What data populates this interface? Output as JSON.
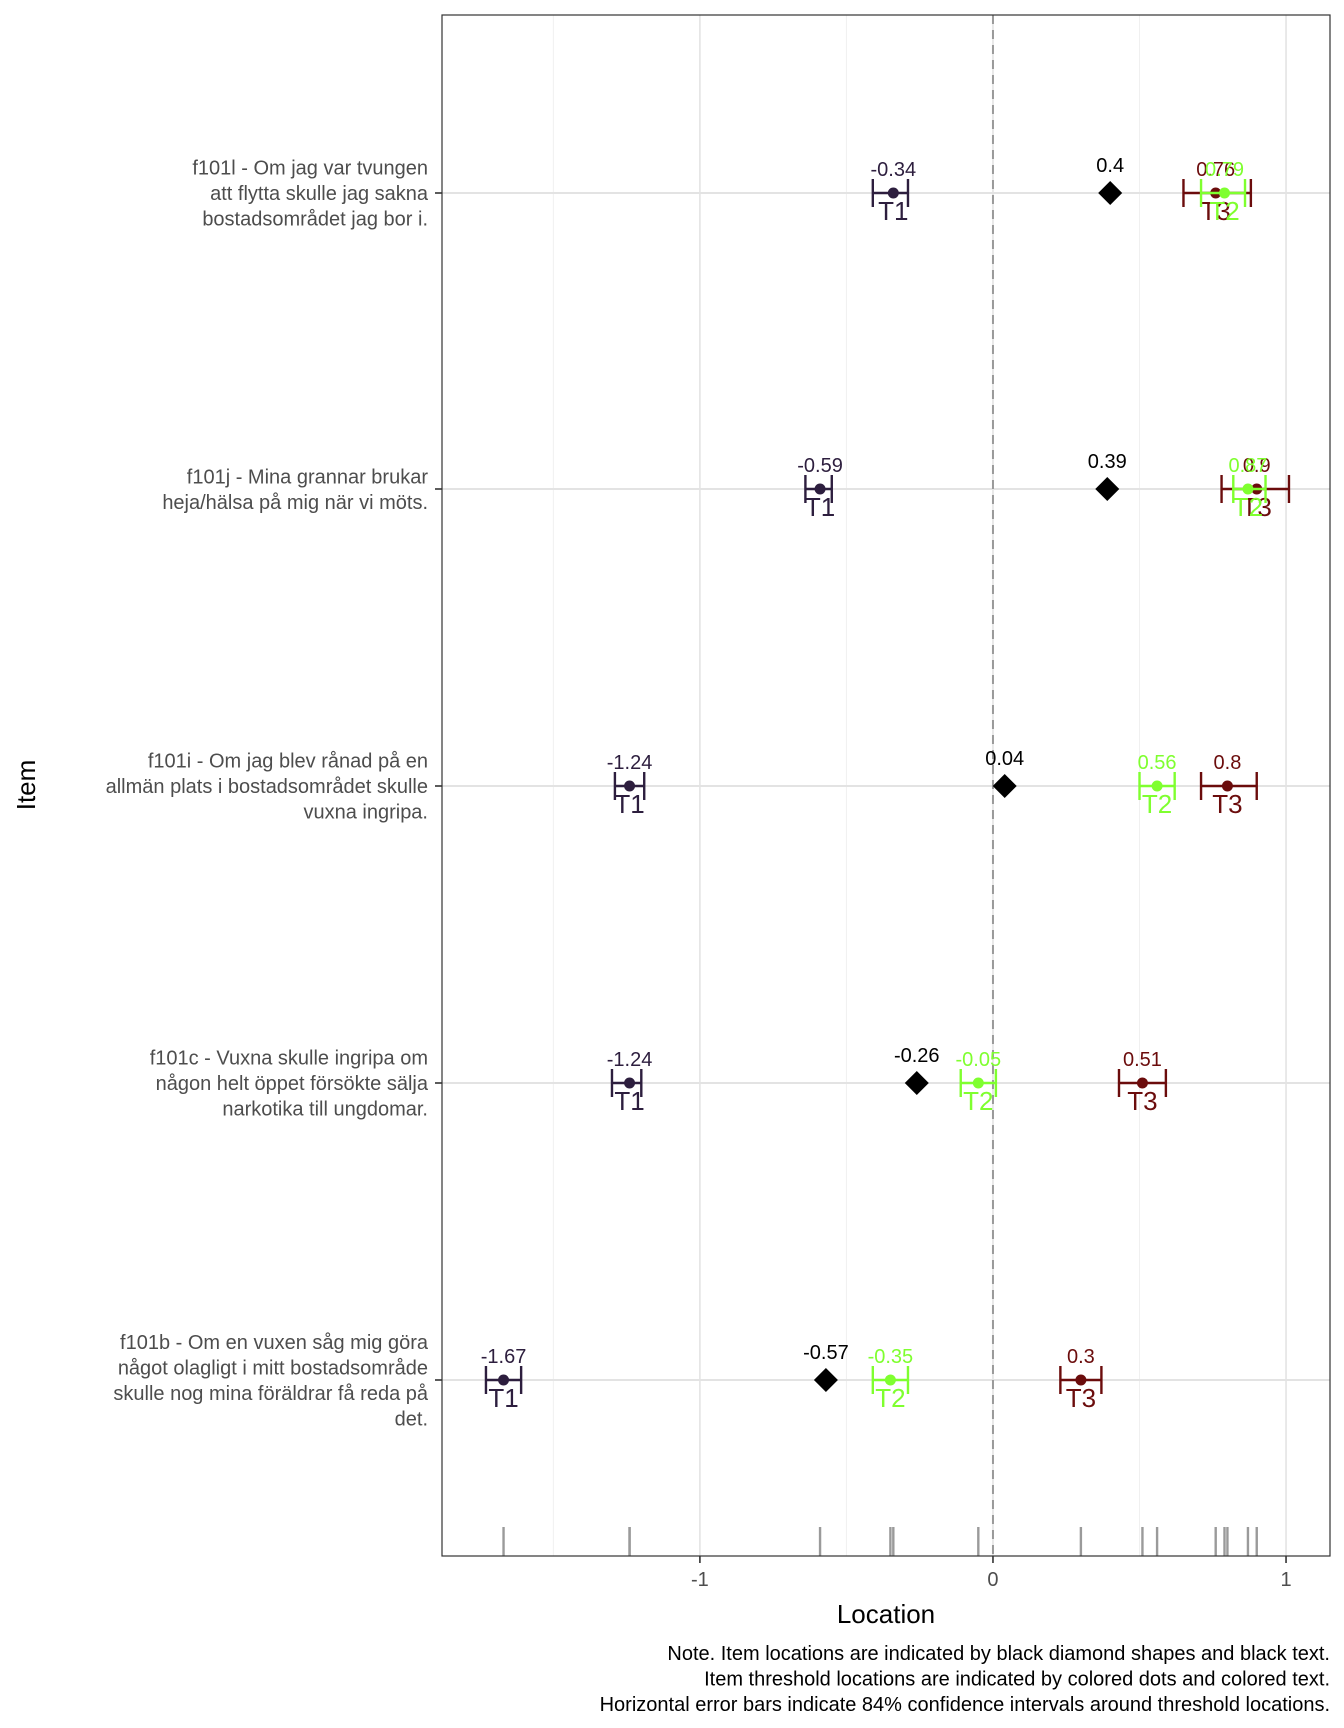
{
  "chart_data": {
    "type": "scatter",
    "xlabel": "Location",
    "ylabel": "Item",
    "xlim": [
      -1.88,
      1.15
    ],
    "x_ticks": [
      -1,
      0,
      1
    ],
    "x_tick_labels": [
      "-1",
      "0",
      "1"
    ],
    "grid": true,
    "reference_line_x": 0,
    "colors": {
      "T1": "#2d1e3e",
      "T2": "#7fff2f",
      "T3": "#6b0c0c",
      "item": "#000000",
      "rug": "#9a9a9a"
    },
    "items": [
      {
        "label_lines": [
          "f101l - Om jag var tvungen",
          "att flytta skulle jag sakna",
          "bostadsområdet jag bor i."
        ],
        "location": 0.4,
        "location_label": "0.4",
        "thresholds": [
          {
            "name": "T1",
            "value": -0.34,
            "label": "-0.34",
            "ci": [
              -0.41,
              -0.29
            ]
          },
          {
            "name": "T2",
            "value": 0.79,
            "label": "0.79",
            "ci": [
              0.71,
              0.86
            ]
          },
          {
            "name": "T3",
            "value": 0.76,
            "label": "0.76",
            "ci": [
              0.65,
              0.88
            ]
          }
        ]
      },
      {
        "label_lines": [
          "f101j - Mina grannar brukar",
          "heja/hälsa på mig när vi möts."
        ],
        "location": 0.39,
        "location_label": "0.39",
        "thresholds": [
          {
            "name": "T1",
            "value": -0.59,
            "label": "-0.59",
            "ci": [
              -0.64,
              -0.55
            ]
          },
          {
            "name": "T2",
            "value": 0.87,
            "label": "0.87",
            "ci": [
              0.82,
              0.93
            ]
          },
          {
            "name": "T3",
            "value": 0.9,
            "label": "0.9",
            "ci": [
              0.78,
              1.01
            ]
          }
        ]
      },
      {
        "label_lines": [
          "f101i - Om jag blev rånad på en",
          "allmän plats i bostadsområdet skulle",
          "vuxna ingripa."
        ],
        "location": 0.04,
        "location_label": "0.04",
        "thresholds": [
          {
            "name": "T1",
            "value": -1.24,
            "label": "-1.24",
            "ci": [
              -1.29,
              -1.19
            ]
          },
          {
            "name": "T2",
            "value": 0.56,
            "label": "0.56",
            "ci": [
              0.5,
              0.62
            ]
          },
          {
            "name": "T3",
            "value": 0.8,
            "label": "0.8",
            "ci": [
              0.71,
              0.9
            ]
          }
        ]
      },
      {
        "label_lines": [
          "f101c - Vuxna skulle ingripa om",
          "någon helt öppet försökte sälja",
          "narkotika till ungdomar."
        ],
        "location": -0.26,
        "location_label": "-0.26",
        "thresholds": [
          {
            "name": "T1",
            "value": -1.24,
            "label": "-1.24",
            "ci": [
              -1.3,
              -1.2
            ]
          },
          {
            "name": "T2",
            "value": -0.05,
            "label": "-0.05",
            "ci": [
              -0.11,
              0.01
            ]
          },
          {
            "name": "T3",
            "value": 0.51,
            "label": "0.51",
            "ci": [
              0.43,
              0.59
            ]
          }
        ]
      },
      {
        "label_lines": [
          "f101b - Om en vuxen såg mig göra",
          "något olagligt i mitt bostadsområde",
          "skulle nog mina föräldrar få reda på",
          "det."
        ],
        "location": -0.57,
        "location_label": "-0.57",
        "thresholds": [
          {
            "name": "T1",
            "value": -1.67,
            "label": "-1.67",
            "ci": [
              -1.73,
              -1.61
            ]
          },
          {
            "name": "T2",
            "value": -0.35,
            "label": "-0.35",
            "ci": [
              -0.41,
              -0.29
            ]
          },
          {
            "name": "T3",
            "value": 0.3,
            "label": "0.3",
            "ci": [
              0.23,
              0.37
            ]
          }
        ]
      }
    ],
    "rug": [
      -1.67,
      -1.24,
      -1.24,
      -0.59,
      -0.35,
      -0.34,
      -0.05,
      0.3,
      0.51,
      0.56,
      0.76,
      0.79,
      0.8,
      0.87,
      0.9
    ],
    "note_lines": [
      "Note. Item locations are indicated by black diamond shapes and black text.",
      "Item threshold locations are indicated by colored dots and colored text.",
      "Horizontal error bars indicate 84% confidence intervals around threshold locations."
    ]
  }
}
